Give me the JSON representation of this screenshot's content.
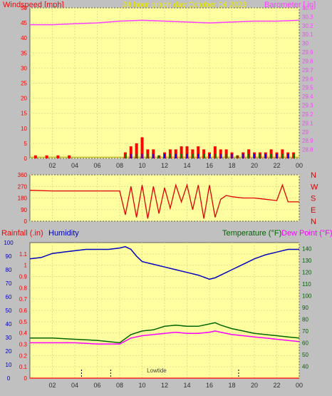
{
  "header": {
    "title": "24 hour graph day   October 04 2023",
    "wind_label": "Windspeed [mph]",
    "baro_label": "Barometer [ in]"
  },
  "colors": {
    "background": "#c0c0c0",
    "plot_bg": "#ffffa0",
    "grid": "#e0e090",
    "wind": "#ff0000",
    "gust_fill": "#0000ff",
    "avg_fill": "#008000",
    "barometer": "#ff40ff",
    "direction": "#e00000",
    "humidity": "#0000c0",
    "temperature": "#006400",
    "dewpoint": "#ff00ff",
    "title": "#e0e000",
    "rain_axis": "#ff0000"
  },
  "x_tick_labels": [
    "02",
    "04",
    "06",
    "08",
    "10",
    "12",
    "14",
    "16",
    "18",
    "20",
    "22",
    "00"
  ],
  "direction_labels": [
    "N",
    "W",
    "S",
    "E",
    "N"
  ],
  "lower": {
    "rain_label": "Rainfall (.in)",
    "humidity_label": "Humidity",
    "temp_label": "Temperature (°F)",
    "dew_label": "Dew Point (°F)",
    "tide_label": "Lowtide"
  },
  "chart_data": [
    {
      "type": "line",
      "title": "24 hour graph day   October 04 2023",
      "x_unit": "hour",
      "xlim": [
        0,
        24
      ],
      "xticks": [
        2,
        4,
        6,
        8,
        10,
        12,
        14,
        16,
        18,
        20,
        22,
        24
      ],
      "series": [
        {
          "name": "Windspeed [mph]",
          "axis": "left",
          "ylim": [
            0,
            50
          ],
          "yticks": [
            0,
            5,
            10,
            15,
            20,
            25,
            30,
            35,
            40,
            45,
            50
          ],
          "x": [
            0.5,
            1.5,
            2.5,
            3.5,
            8.5,
            9,
            9.5,
            10,
            10.5,
            11,
            11.5,
            12,
            12.5,
            13,
            13.5,
            14,
            14.5,
            15,
            15.5,
            16,
            16.5,
            17,
            17.5,
            18,
            18.5,
            19,
            19.5,
            20,
            20.5,
            21,
            21.5,
            22,
            22.5,
            23,
            23.5
          ],
          "y": [
            1,
            1,
            1,
            1,
            2,
            4,
            5,
            7,
            3,
            3,
            1,
            2,
            3,
            3,
            4,
            4,
            3,
            4,
            3,
            2,
            4,
            3,
            3,
            2,
            1,
            2,
            3,
            2,
            2,
            2,
            3,
            2,
            3,
            2,
            2
          ]
        },
        {
          "name": "Barometer [ in]",
          "axis": "right",
          "ylim": [
            28.7,
            30.4
          ],
          "yticks": [
            28.8,
            28.9,
            29,
            29.1,
            29.2,
            29.3,
            29.4,
            29.5,
            29.6,
            29.7,
            29.8,
            29.9,
            30,
            30.1,
            30.2,
            30.3,
            30.4
          ],
          "x": [
            0,
            2,
            4,
            6,
            8,
            10,
            12,
            14,
            16,
            18,
            20,
            22,
            24
          ],
          "y": [
            30.21,
            30.21,
            30.22,
            30.23,
            30.25,
            30.26,
            30.25,
            30.24,
            30.23,
            30.24,
            30.25,
            30.25,
            30.26
          ]
        }
      ]
    },
    {
      "type": "line",
      "series": [
        {
          "name": "Wind direction",
          "ylim": [
            0,
            360
          ],
          "yticks": [
            0,
            90,
            180,
            270,
            360
          ],
          "x": [
            0,
            2,
            4,
            6,
            8,
            8.5,
            9,
            9.5,
            10,
            10.5,
            11,
            11.5,
            12,
            12.5,
            13,
            13.5,
            14,
            14.5,
            15,
            15.5,
            16,
            16.5,
            17,
            17.5,
            18,
            19,
            20,
            21,
            22,
            22.5,
            23,
            24
          ],
          "y": [
            240,
            235,
            235,
            235,
            235,
            50,
            270,
            30,
            280,
            20,
            270,
            60,
            260,
            100,
            280,
            150,
            280,
            90,
            280,
            20,
            280,
            30,
            170,
            200,
            190,
            180,
            180,
            170,
            160,
            280,
            150,
            150
          ]
        }
      ]
    },
    {
      "type": "line",
      "xlim": [
        0,
        24
      ],
      "series": [
        {
          "name": "Humidity",
          "axis": "humidity",
          "ylim": [
            0,
            100
          ],
          "yticks": [
            0,
            10,
            20,
            30,
            40,
            50,
            60,
            70,
            80,
            90,
            100
          ],
          "x": [
            0,
            1,
            2,
            3,
            4,
            5,
            6,
            7,
            8,
            8.5,
            9,
            9.5,
            10,
            11,
            12,
            13,
            14,
            15,
            16,
            16.5,
            17,
            18,
            19,
            20,
            21,
            22,
            23,
            24
          ],
          "y": [
            88,
            89,
            92,
            93,
            94,
            95,
            95,
            95,
            96,
            97,
            95,
            90,
            86,
            84,
            82,
            80,
            78,
            76,
            73,
            74,
            76,
            80,
            84,
            88,
            91,
            93,
            95,
            95
          ]
        },
        {
          "name": "Temperature (°F)",
          "axis": "right",
          "ylim": [
            30,
            145
          ],
          "yticks": [
            40,
            50,
            60,
            70,
            80,
            90,
            100,
            110,
            120,
            130,
            140
          ],
          "x": [
            0,
            2,
            4,
            6,
            7,
            8,
            9,
            10,
            11,
            12,
            13,
            14,
            15,
            16,
            16.5,
            17,
            18,
            19,
            20,
            21,
            22,
            23,
            24
          ],
          "y": [
            64,
            64,
            63,
            62,
            61,
            60,
            67,
            70,
            71,
            74,
            75,
            74,
            74,
            76,
            77,
            75,
            72,
            70,
            68,
            67,
            66,
            65,
            64
          ]
        },
        {
          "name": "Dew Point (°F)",
          "axis": "right",
          "ylim": [
            30,
            145
          ],
          "x": [
            0,
            2,
            4,
            6,
            7,
            8,
            9,
            10,
            11,
            12,
            13,
            14,
            15,
            16,
            16.5,
            17,
            18,
            19,
            20,
            21,
            22,
            23,
            24
          ],
          "y": [
            60,
            60,
            60,
            59,
            59,
            59,
            64,
            66,
            67,
            68,
            69,
            68,
            68,
            69,
            70,
            69,
            67,
            66,
            65,
            64,
            63,
            62,
            61
          ]
        },
        {
          "name": "Rainfall (.in)",
          "axis": "left",
          "ylim": [
            0,
            1.2
          ],
          "yticks": [
            0,
            0.1,
            0.2,
            0.3,
            0.4,
            0.5,
            0.6,
            0.7,
            0.8,
            0.9,
            1,
            1.1
          ],
          "x": [
            0,
            24
          ],
          "y": [
            0,
            0
          ]
        }
      ]
    }
  ]
}
